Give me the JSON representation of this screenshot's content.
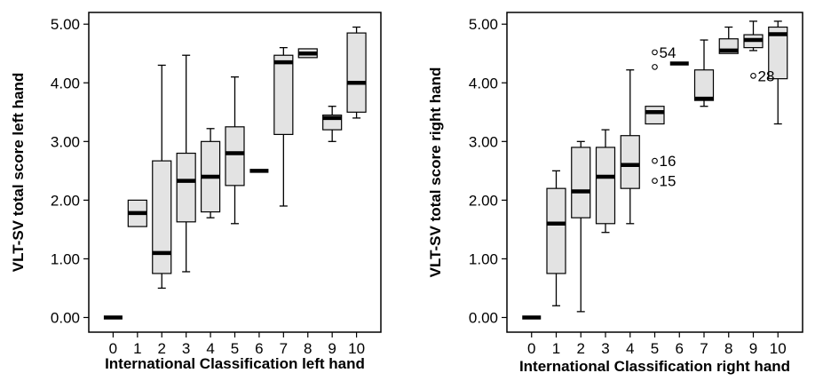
{
  "colors": {
    "box_fill": "#e3e3e3",
    "median": "#000000",
    "frame": "#000000",
    "background": "#ffffff"
  },
  "chart_data": [
    {
      "type": "boxplot",
      "xlabel": "International Classification left hand",
      "ylabel": "VLT-SV total score left hand",
      "ylim": [
        -0.25,
        5.2
      ],
      "yticks": [
        "0.00",
        "1.00",
        "2.00",
        "3.00",
        "4.00",
        "5.00"
      ],
      "categories": [
        "0",
        "1",
        "2",
        "3",
        "4",
        "5",
        "6",
        "7",
        "8",
        "9",
        "10"
      ],
      "boxes": [
        {
          "cat": "0",
          "min": 0.0,
          "q1": 0.0,
          "median": 0.0,
          "q3": 0.0,
          "max": 0.0
        },
        {
          "cat": "1",
          "min": 1.55,
          "q1": 1.55,
          "median": 1.78,
          "q3": 2.0,
          "max": 2.0
        },
        {
          "cat": "2",
          "min": 0.5,
          "q1": 0.75,
          "median": 1.1,
          "q3": 2.67,
          "max": 4.3
        },
        {
          "cat": "3",
          "min": 0.78,
          "q1": 1.63,
          "median": 2.33,
          "q3": 2.8,
          "max": 4.47
        },
        {
          "cat": "4",
          "min": 1.7,
          "q1": 1.8,
          "median": 2.4,
          "q3": 3.0,
          "max": 3.22
        },
        {
          "cat": "5",
          "min": 1.6,
          "q1": 2.25,
          "median": 2.8,
          "q3": 3.25,
          "max": 4.1
        },
        {
          "cat": "6",
          "min": 2.5,
          "q1": 2.5,
          "median": 2.5,
          "q3": 2.5,
          "max": 2.5
        },
        {
          "cat": "7",
          "min": 1.9,
          "q1": 3.12,
          "median": 4.35,
          "q3": 4.47,
          "max": 4.6
        },
        {
          "cat": "8",
          "min": 4.43,
          "q1": 4.43,
          "median": 4.5,
          "q3": 4.58,
          "max": 4.58
        },
        {
          "cat": "9",
          "min": 3.0,
          "q1": 3.2,
          "median": 3.4,
          "q3": 3.45,
          "max": 3.6
        },
        {
          "cat": "10",
          "min": 3.4,
          "q1": 3.5,
          "median": 4.0,
          "q3": 4.85,
          "max": 4.95
        }
      ],
      "outliers": []
    },
    {
      "type": "boxplot",
      "xlabel": "International Classification right hand",
      "ylabel": "VLT-SV total score right hand",
      "ylim": [
        -0.25,
        5.2
      ],
      "yticks": [
        "0.00",
        "1.00",
        "2.00",
        "3.00",
        "4.00",
        "5.00"
      ],
      "categories": [
        "0",
        "1",
        "2",
        "3",
        "4",
        "5",
        "6",
        "7",
        "8",
        "9",
        "10"
      ],
      "boxes": [
        {
          "cat": "0",
          "min": 0.0,
          "q1": 0.0,
          "median": 0.0,
          "q3": 0.0,
          "max": 0.0
        },
        {
          "cat": "1",
          "min": 0.2,
          "q1": 0.75,
          "median": 1.6,
          "q3": 2.2,
          "max": 2.5
        },
        {
          "cat": "2",
          "min": 0.1,
          "q1": 1.7,
          "median": 2.15,
          "q3": 2.9,
          "max": 3.0
        },
        {
          "cat": "3",
          "min": 1.45,
          "q1": 1.6,
          "median": 2.4,
          "q3": 2.9,
          "max": 3.2
        },
        {
          "cat": "4",
          "min": 1.6,
          "q1": 2.2,
          "median": 2.6,
          "q3": 3.1,
          "max": 4.22
        },
        {
          "cat": "5",
          "min": 3.3,
          "q1": 3.3,
          "median": 3.5,
          "q3": 3.6,
          "max": 3.6
        },
        {
          "cat": "6",
          "min": 4.33,
          "q1": 4.33,
          "median": 4.33,
          "q3": 4.33,
          "max": 4.33
        },
        {
          "cat": "7",
          "min": 3.6,
          "q1": 3.7,
          "median": 3.73,
          "q3": 4.22,
          "max": 4.73
        },
        {
          "cat": "8",
          "min": 4.5,
          "q1": 4.5,
          "median": 4.55,
          "q3": 4.75,
          "max": 4.95
        },
        {
          "cat": "9",
          "min": 4.55,
          "q1": 4.6,
          "median": 4.73,
          "q3": 4.82,
          "max": 5.05
        },
        {
          "cat": "10",
          "min": 3.3,
          "q1": 4.07,
          "median": 4.83,
          "q3": 4.95,
          "max": 5.05
        }
      ],
      "outliers": [
        {
          "cat": "5",
          "value": 4.52,
          "label": "54"
        },
        {
          "cat": "5",
          "value": 4.27,
          "label": ""
        },
        {
          "cat": "5",
          "value": 2.67,
          "label": "16"
        },
        {
          "cat": "5",
          "value": 2.33,
          "label": "15"
        },
        {
          "cat": "9",
          "value": 4.12,
          "label": "28"
        }
      ]
    }
  ]
}
